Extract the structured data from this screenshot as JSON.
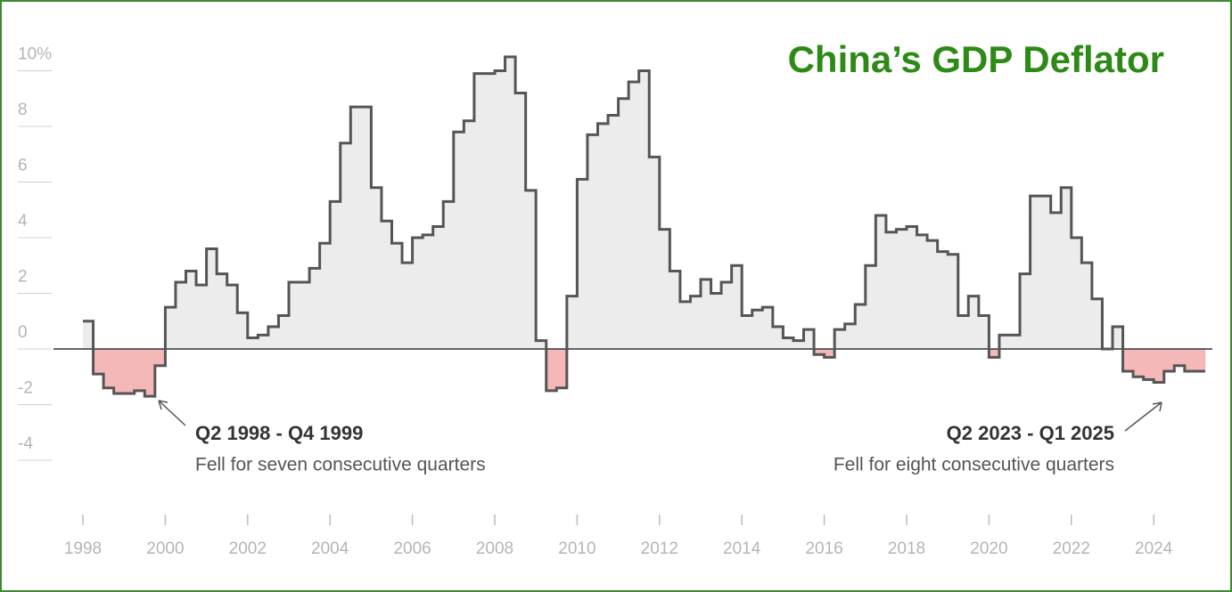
{
  "chart_data": {
    "type": "step",
    "title": "China’s GDP Deflator",
    "x": [
      1998,
      1998.25,
      1998.5,
      1998.75,
      1999,
      1999.25,
      1999.5,
      1999.75,
      2000,
      2000.25,
      2000.5,
      2000.75,
      2001,
      2001.25,
      2001.5,
      2001.75,
      2002,
      2002.25,
      2002.5,
      2002.75,
      2003,
      2003.25,
      2003.5,
      2003.75,
      2004,
      2004.25,
      2004.5,
      2004.75,
      2005,
      2005.25,
      2005.5,
      2005.75,
      2006,
      2006.25,
      2006.5,
      2006.75,
      2007,
      2007.25,
      2007.5,
      2007.75,
      2008,
      2008.25,
      2008.5,
      2008.75,
      2009,
      2009.25,
      2009.5,
      2009.75,
      2010,
      2010.25,
      2010.5,
      2010.75,
      2011,
      2011.25,
      2011.5,
      2011.75,
      2012,
      2012.25,
      2012.5,
      2012.75,
      2013,
      2013.25,
      2013.5,
      2013.75,
      2014,
      2014.25,
      2014.5,
      2014.75,
      2015,
      2015.25,
      2015.5,
      2015.75,
      2016,
      2016.25,
      2016.5,
      2016.75,
      2017,
      2017.25,
      2017.5,
      2017.75,
      2018,
      2018.25,
      2018.5,
      2018.75,
      2019,
      2019.25,
      2019.5,
      2019.75,
      2020,
      2020.25,
      2020.5,
      2020.75,
      2021,
      2021.25,
      2021.5,
      2021.75,
      2022,
      2022.25,
      2022.5,
      2022.75,
      2023,
      2023.25,
      2023.5,
      2023.75,
      2024,
      2024.25,
      2024.5,
      2024.75,
      2025
    ],
    "series": [
      {
        "color": "#555555",
        "positive_fill": "#ececec",
        "negative_fill": "#f5b8b8",
        "values": [
          1.0,
          -0.9,
          -1.4,
          -1.6,
          -1.6,
          -1.5,
          -1.7,
          -0.6,
          1.5,
          2.4,
          2.8,
          2.3,
          3.6,
          2.7,
          2.3,
          1.3,
          0.4,
          0.5,
          0.8,
          1.2,
          2.4,
          2.4,
          2.9,
          3.8,
          5.3,
          7.4,
          8.7,
          8.7,
          5.8,
          4.6,
          3.8,
          3.1,
          4.0,
          4.1,
          4.4,
          5.3,
          7.8,
          8.2,
          9.9,
          9.9,
          10.0,
          10.5,
          9.2,
          5.7,
          0.3,
          -1.5,
          -1.4,
          1.9,
          6.1,
          7.7,
          8.1,
          8.4,
          9.0,
          9.6,
          10.0,
          6.9,
          4.3,
          2.8,
          1.7,
          1.9,
          2.5,
          2.0,
          2.4,
          3.0,
          1.2,
          1.4,
          1.5,
          0.8,
          0.4,
          0.3,
          0.7,
          -0.2,
          -0.3,
          0.7,
          0.9,
          1.6,
          3.0,
          4.8,
          4.2,
          4.3,
          4.4,
          4.1,
          3.9,
          3.5,
          3.4,
          1.2,
          1.9,
          1.2,
          -0.3,
          0.5,
          0.5,
          2.7,
          5.5,
          5.5,
          4.9,
          5.8,
          4.0,
          3.1,
          1.8,
          0.0,
          0.8,
          -0.8,
          -1.0,
          -1.1,
          -1.2,
          -0.8,
          -0.6,
          -0.8,
          -0.8
        ]
      }
    ],
    "xlim": [
      1998,
      2025.25
    ],
    "xticks": [
      1998,
      2000,
      2002,
      2004,
      2006,
      2008,
      2010,
      2012,
      2014,
      2016,
      2018,
      2020,
      2022,
      2024
    ],
    "ylim": [
      -4,
      10
    ],
    "yticks": [
      -4,
      -2,
      0,
      2,
      4,
      6,
      8,
      {
        "value": 10,
        "label": "10%"
      }
    ],
    "annotations": [
      {
        "title": "Q2 1998 - Q4 1999",
        "text": "Fell for seven consecutive quarters"
      },
      {
        "title": "Q2 2023 - Q1 2025",
        "text": "Fell for eight consecutive quarters"
      }
    ]
  }
}
